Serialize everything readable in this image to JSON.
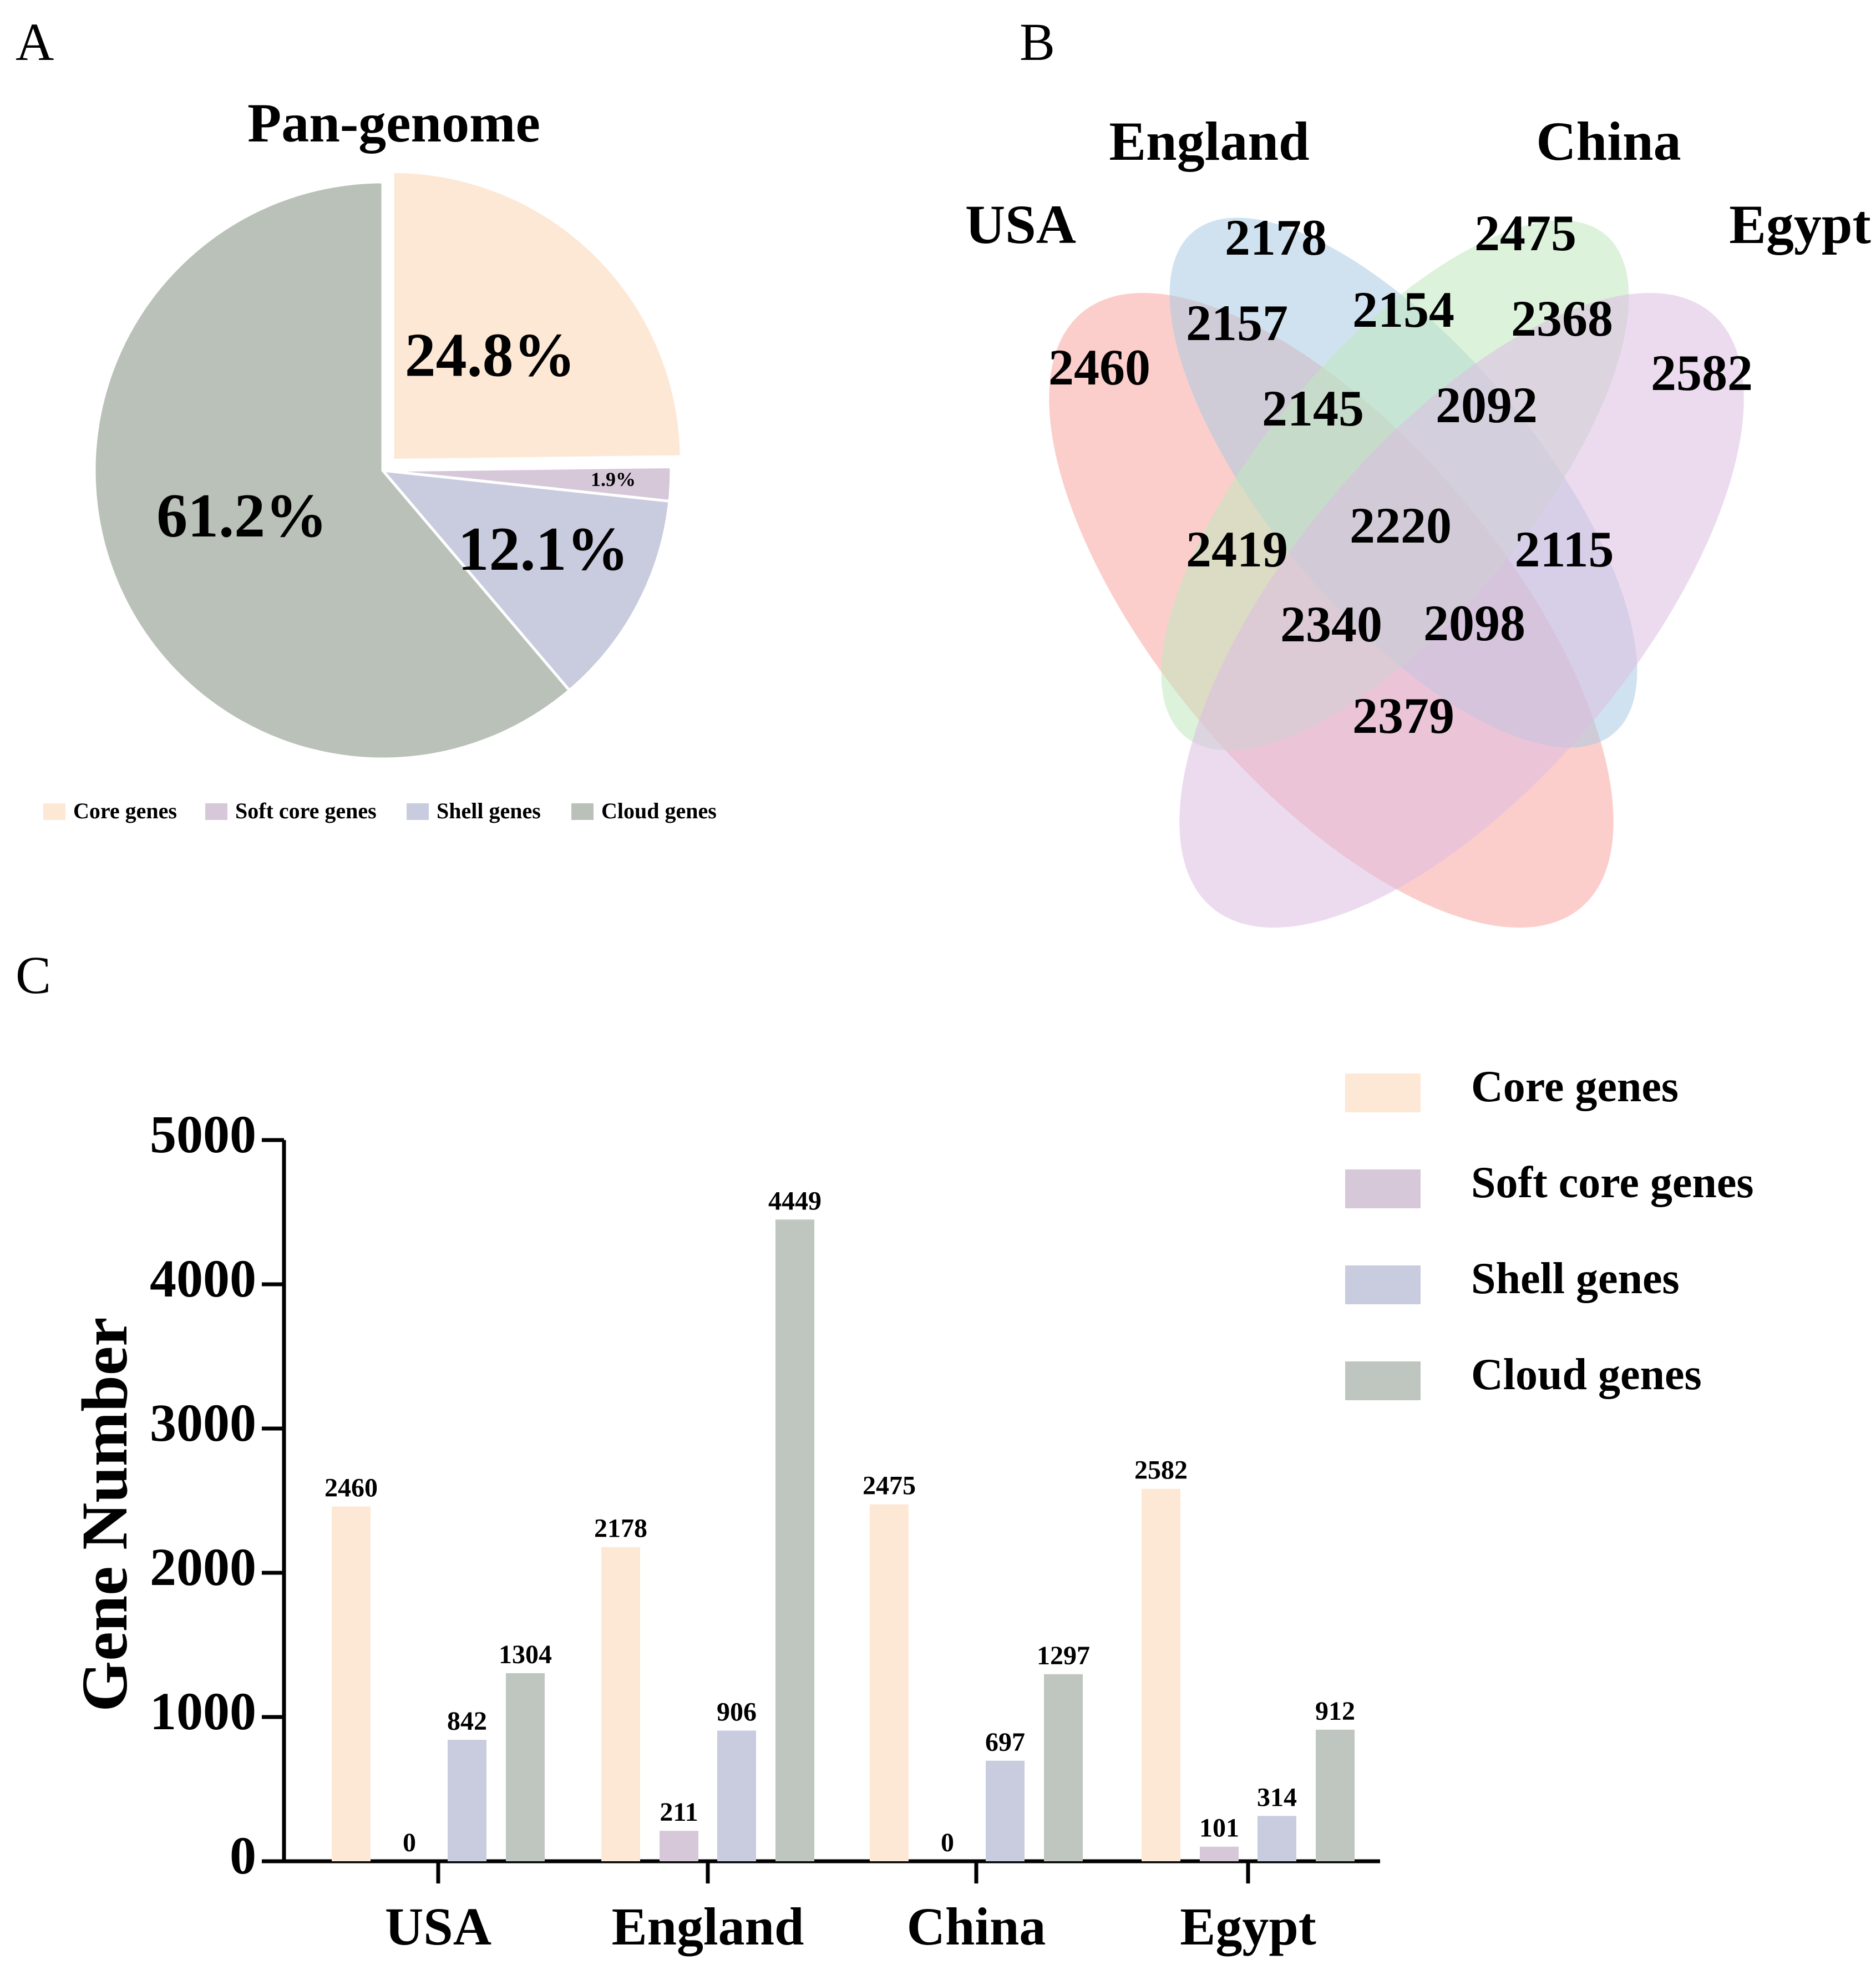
{
  "panels": {
    "a": "A",
    "b": "B",
    "c": "C"
  },
  "chart_data": [
    {
      "type": "pie",
      "title": "Pan-genome",
      "slices": [
        {
          "label": "Core genes",
          "value": 24.8,
          "text": "24.8%",
          "color": "#fde8d6",
          "exploded": true
        },
        {
          "label": "Soft core genes",
          "value": 1.9,
          "text": "1.9%",
          "color": "#d6c8d8",
          "exploded": false
        },
        {
          "label": "Shell genes",
          "value": 12.1,
          "text": "12.1%",
          "color": "#c9cbde",
          "exploded": false
        },
        {
          "label": "Cloud genes",
          "value": 61.2,
          "text": "61.2%",
          "color": "#b9c1b8",
          "exploded": false
        }
      ],
      "legend": [
        "Core genes",
        "Soft core genes",
        "Shell genes",
        "Cloud genes"
      ],
      "legend_position": "bottom"
    },
    {
      "type": "venn",
      "sets": [
        {
          "name": "USA",
          "color": "#f9a5a0"
        },
        {
          "name": "England",
          "color": "#a9cbe4"
        },
        {
          "name": "China",
          "color": "#bfe8bd"
        },
        {
          "name": "Egypt",
          "color": "#ddbde2"
        }
      ],
      "regions": [
        {
          "sets": [
            "USA"
          ],
          "value": 2460
        },
        {
          "sets": [
            "England"
          ],
          "value": 2178
        },
        {
          "sets": [
            "China"
          ],
          "value": 2475
        },
        {
          "sets": [
            "Egypt"
          ],
          "value": 2582
        },
        {
          "sets": [
            "USA",
            "England"
          ],
          "value": 2157
        },
        {
          "sets": [
            "England",
            "China"
          ],
          "value": 2154
        },
        {
          "sets": [
            "China",
            "Egypt"
          ],
          "value": 2368
        },
        {
          "sets": [
            "USA",
            "England",
            "China"
          ],
          "value": 2145
        },
        {
          "sets": [
            "England",
            "China",
            "Egypt"
          ],
          "value": 2092
        },
        {
          "sets": [
            "USA",
            "China"
          ],
          "value": 2419
        },
        {
          "sets": [
            "USA",
            "England",
            "China",
            "Egypt"
          ],
          "value": 2220
        },
        {
          "sets": [
            "England",
            "Egypt"
          ],
          "value": 2115
        },
        {
          "sets": [
            "USA",
            "China",
            "Egypt"
          ],
          "value": 2340
        },
        {
          "sets": [
            "USA",
            "England",
            "Egypt"
          ],
          "value": 2098
        },
        {
          "sets": [
            "USA",
            "Egypt"
          ],
          "value": 2379
        }
      ]
    },
    {
      "type": "bar",
      "ylabel": "Gene Number",
      "xlabel": "",
      "ylim": [
        0,
        5000
      ],
      "yticks": [
        0,
        1000,
        2000,
        3000,
        4000,
        5000
      ],
      "categories": [
        "USA",
        "England",
        "China",
        "Egypt"
      ],
      "series": [
        {
          "name": "Core genes",
          "color": "#fde8d6",
          "values": [
            2460,
            2178,
            2475,
            2582
          ]
        },
        {
          "name": "Soft core genes",
          "color": "#d6c8d8",
          "values": [
            0,
            211,
            0,
            101
          ]
        },
        {
          "name": "Shell genes",
          "color": "#c9cbde",
          "values": [
            842,
            906,
            697,
            314
          ]
        },
        {
          "name": "Cloud genes",
          "color": "#bfc6bf",
          "values": [
            1304,
            4449,
            1297,
            912
          ]
        }
      ],
      "legend_position": "top-right"
    }
  ]
}
